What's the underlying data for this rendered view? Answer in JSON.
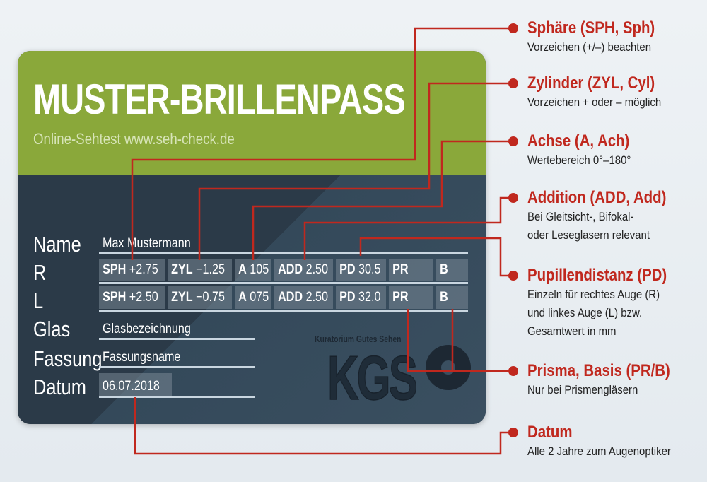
{
  "card": {
    "title": "MUSTER-BRILLENPASS",
    "subtitle": "Online-Sehtest www.seh-check.de",
    "labels": {
      "name": "Name",
      "r": "R",
      "l": "L",
      "glas": "Glas",
      "fassung": "Fassung",
      "datum": "Datum"
    },
    "name_value": "Max Mustermann",
    "rows": {
      "R": [
        {
          "key": "SPH",
          "value": "+2.75"
        },
        {
          "key": "ZYL",
          "value": "−1.25"
        },
        {
          "key": "A",
          "value": "105"
        },
        {
          "key": "ADD",
          "value": "2.50"
        },
        {
          "key": "PD",
          "value": "30.5"
        },
        {
          "key": "PR",
          "value": ""
        },
        {
          "key": "B",
          "value": ""
        }
      ],
      "L": [
        {
          "key": "SPH",
          "value": "+2.50"
        },
        {
          "key": "ZYL",
          "value": "−0.75"
        },
        {
          "key": "A",
          "value": "075"
        },
        {
          "key": "ADD",
          "value": "2.50"
        },
        {
          "key": "PD",
          "value": "32.0"
        },
        {
          "key": "PR",
          "value": ""
        },
        {
          "key": "B",
          "value": ""
        }
      ]
    },
    "glas_value": "Glasbezeichnung",
    "fassung_value": "Fassungsname",
    "datum_value": "06.07.2018",
    "logo": {
      "org": "Kuratorium Gutes Sehen",
      "mark": "KGS"
    }
  },
  "annotations": [
    {
      "title": "Sphäre (SPH, Sph)",
      "desc": [
        "Vorzeichen (+/–) beachten"
      ]
    },
    {
      "title": "Zylinder (ZYL, Cyl)",
      "desc": [
        "Vorzeichen + oder – möglich"
      ]
    },
    {
      "title": "Achse (A, Ach)",
      "desc": [
        "Wertebereich 0°–180°"
      ]
    },
    {
      "title": "Addition (ADD, Add)",
      "desc": [
        "Bei Gleitsicht-, Bifokal-",
        "oder Leseglasern relevant"
      ]
    },
    {
      "title": "Pupillendistanz (PD)",
      "desc": [
        "Einzeln für rechtes Auge (R)",
        "und linkes Auge (L) bzw.",
        "Gesamtwert in mm"
      ]
    },
    {
      "title": "Prisma, Basis (PR/B)",
      "desc": [
        "Nur bei Prismengläsern"
      ]
    },
    {
      "title": "Datum",
      "desc": [
        "Alle 2 Jahre zum Augenoptiker"
      ]
    }
  ],
  "colors": {
    "green": "#8aa83a",
    "card_dark": "#2b3a48",
    "accent_red": "#c0281e"
  }
}
